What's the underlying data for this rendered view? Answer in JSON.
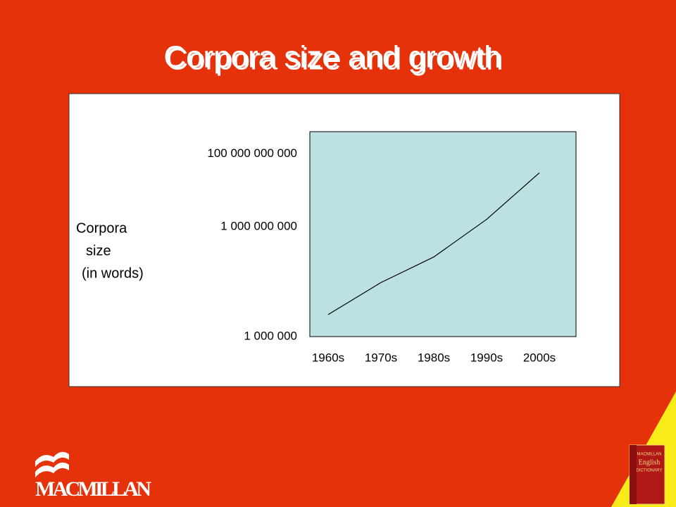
{
  "chart_data": {
    "type": "line",
    "title": "Corpora size and growth",
    "ylabel": [
      "Corpora",
      "size",
      "(in words)"
    ],
    "categories": [
      "1960s",
      "1970s",
      "1980s",
      "1990s",
      "2000s"
    ],
    "series": [
      {
        "color": "#000000",
        "values": [
          4000000,
          30000000,
          150000000,
          1600000000,
          30000000000
        ]
      }
    ],
    "log_scale": true,
    "ylim": [
      1000000,
      400000000000
    ],
    "yticks": [
      {
        "value": 1000000,
        "label": "1 000 000"
      },
      {
        "value": 1000000000,
        "label": "1 000 000 000"
      },
      {
        "value": 100000000000,
        "label": "100 000 000 000"
      }
    ],
    "grid": false,
    "plot_background": "#bde0e3"
  },
  "slide": {
    "logo": "MACMILLAN",
    "book": [
      "MACMILLAN",
      "English",
      "DICTIONARY"
    ]
  }
}
